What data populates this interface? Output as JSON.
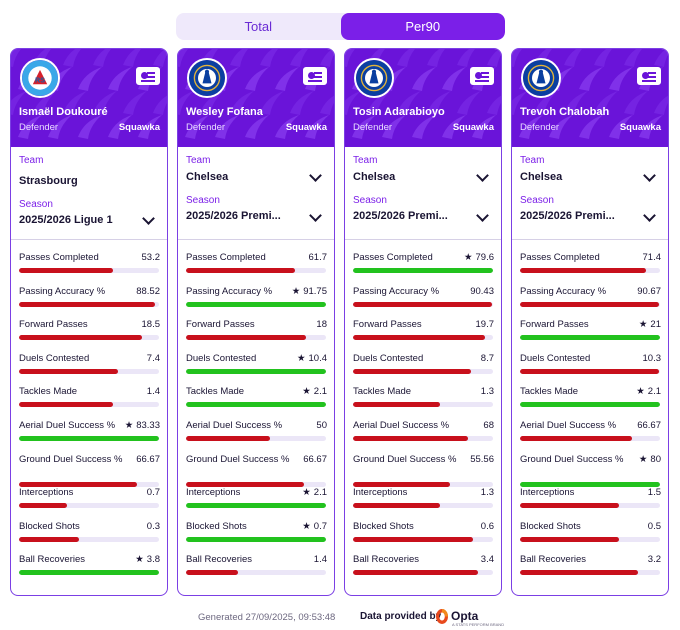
{
  "tabs": {
    "total_label": "Total",
    "per90_label": "Per90",
    "active": "Per90"
  },
  "colors": {
    "accent": "#7b1fe8",
    "header_bg": "#6a14d9",
    "bar_good": "#22c21e",
    "bar_bad": "#c8101c",
    "bar_track": "#ebe6f7"
  },
  "labels": {
    "team": "Team",
    "season": "Season",
    "star": "★"
  },
  "stat_labels": [
    "Passes Completed",
    "Passing Accuracy %",
    "Forward Passes",
    "Duels Contested",
    "Tackles Made",
    "Aerial Duel Success %",
    "Ground Duel Success %",
    "Interceptions",
    "Blocked Shots",
    "Ball Recoveries"
  ],
  "players": [
    {
      "name": "Ismaël Doukouré",
      "position": "Defender",
      "source": "Squawka",
      "club_icon": "strasbourg-crest-icon",
      "team": "Strasbourg",
      "team_dropdown": false,
      "season": "2025/2026 Ligue 1",
      "stats": [
        {
          "value": "53.2",
          "fill": 0.67,
          "best": false
        },
        {
          "value": "88.52",
          "fill": 0.97,
          "best": false
        },
        {
          "value": "18.5",
          "fill": 0.88,
          "best": false
        },
        {
          "value": "7.4",
          "fill": 0.71,
          "best": false
        },
        {
          "value": "1.4",
          "fill": 0.67,
          "best": false
        },
        {
          "value": "83.33",
          "fill": 1.0,
          "best": true
        },
        {
          "value": "66.67",
          "fill": 0.84,
          "best": false
        },
        {
          "value": "0.7",
          "fill": 0.34,
          "best": false
        },
        {
          "value": "0.3",
          "fill": 0.43,
          "best": false
        },
        {
          "value": "3.8",
          "fill": 1.0,
          "best": true
        }
      ]
    },
    {
      "name": "Wesley Fofana",
      "position": "Defender",
      "source": "Squawka",
      "club_icon": "chelsea-crest-icon",
      "team": "Chelsea",
      "team_dropdown": true,
      "season": "2025/2026 Premi...",
      "stats": [
        {
          "value": "61.7",
          "fill": 0.78,
          "best": false
        },
        {
          "value": "91.75",
          "fill": 1.0,
          "best": true
        },
        {
          "value": "18",
          "fill": 0.86,
          "best": false
        },
        {
          "value": "10.4",
          "fill": 1.0,
          "best": true
        },
        {
          "value": "2.1",
          "fill": 1.0,
          "best": true
        },
        {
          "value": "50",
          "fill": 0.6,
          "best": false
        },
        {
          "value": "66.67",
          "fill": 0.84,
          "best": false
        },
        {
          "value": "2.1",
          "fill": 1.0,
          "best": true
        },
        {
          "value": "0.7",
          "fill": 1.0,
          "best": true
        },
        {
          "value": "1.4",
          "fill": 0.37,
          "best": false
        }
      ]
    },
    {
      "name": "Tosin Adarabioyo",
      "position": "Defender",
      "source": "Squawka",
      "club_icon": "chelsea-crest-icon",
      "team": "Chelsea",
      "team_dropdown": true,
      "season": "2025/2026 Premi...",
      "stats": [
        {
          "value": "79.6",
          "fill": 1.0,
          "best": true
        },
        {
          "value": "90.43",
          "fill": 0.99,
          "best": false
        },
        {
          "value": "19.7",
          "fill": 0.94,
          "best": false
        },
        {
          "value": "8.7",
          "fill": 0.84,
          "best": false
        },
        {
          "value": "1.3",
          "fill": 0.62,
          "best": false
        },
        {
          "value": "68",
          "fill": 0.82,
          "best": false
        },
        {
          "value": "55.56",
          "fill": 0.69,
          "best": false
        },
        {
          "value": "1.3",
          "fill": 0.62,
          "best": false
        },
        {
          "value": "0.6",
          "fill": 0.86,
          "best": false
        },
        {
          "value": "3.4",
          "fill": 0.89,
          "best": false
        }
      ]
    },
    {
      "name": "Trevoh Chalobah",
      "position": "Defender",
      "source": "Squawka",
      "club_icon": "chelsea-crest-icon",
      "team": "Chelsea",
      "team_dropdown": true,
      "season": "2025/2026 Premi...",
      "stats": [
        {
          "value": "71.4",
          "fill": 0.9,
          "best": false
        },
        {
          "value": "90.67",
          "fill": 0.99,
          "best": false
        },
        {
          "value": "21",
          "fill": 1.0,
          "best": true
        },
        {
          "value": "10.3",
          "fill": 0.99,
          "best": false
        },
        {
          "value": "2.1",
          "fill": 1.0,
          "best": true
        },
        {
          "value": "66.67",
          "fill": 0.8,
          "best": false
        },
        {
          "value": "80",
          "fill": 1.0,
          "best": true
        },
        {
          "value": "1.5",
          "fill": 0.71,
          "best": false
        },
        {
          "value": "0.5",
          "fill": 0.71,
          "best": false
        },
        {
          "value": "3.2",
          "fill": 0.84,
          "best": false
        }
      ]
    }
  ],
  "footer": {
    "generated": "Generated 27/09/2025, 09:53:48",
    "provided_by": "Data provided by",
    "provider": "Opta",
    "provider_sub": "A STATS PERFORM BRAND"
  }
}
